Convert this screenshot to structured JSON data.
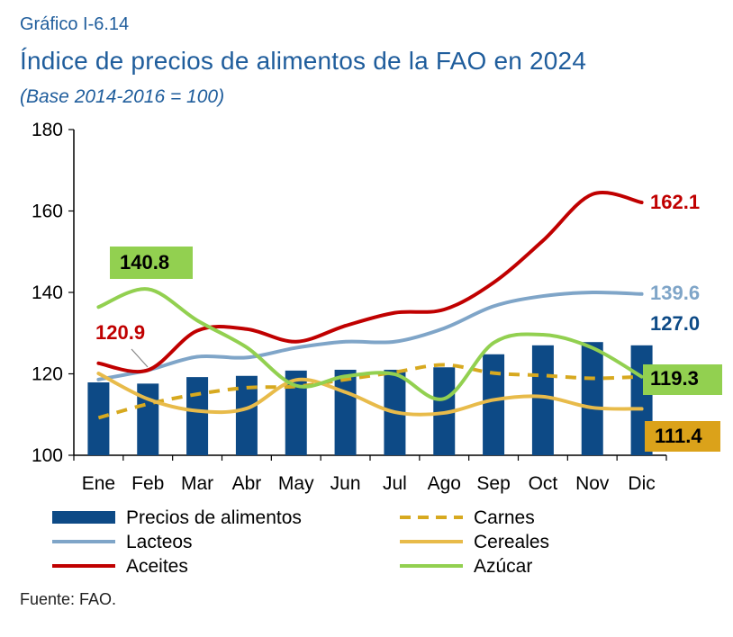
{
  "header": {
    "kicker": "Gráfico I-6.14",
    "title": "Índice de precios de alimentos de la FAO en 2024",
    "subtitle": "(Base 2014-2016 = 100)"
  },
  "footer": {
    "source": "Fuente: FAO."
  },
  "chart_data": {
    "type": "bar",
    "categories": [
      "Ene",
      "Feb",
      "Mar",
      "Abr",
      "May",
      "Jun",
      "Jul",
      "Ago",
      "Sep",
      "Oct",
      "Nov",
      "Dic"
    ],
    "ylim": [
      100,
      180
    ],
    "yticks": [
      100,
      120,
      140,
      160,
      180
    ],
    "grid": false,
    "legend_position": "bottom",
    "series": [
      {
        "name": "Precios de alimentos",
        "kind": "bar",
        "color": "#0d4a86",
        "values": [
          117.9,
          117.6,
          119.2,
          119.5,
          120.8,
          121.0,
          121.0,
          121.6,
          124.8,
          127.0,
          127.8,
          127.0
        ]
      },
      {
        "name": "Carnes",
        "kind": "line-dashed",
        "color": "#d7a91f",
        "values": [
          109.2,
          112.6,
          115.0,
          116.6,
          116.9,
          118.6,
          120.4,
          122.2,
          120.2,
          119.6,
          118.9,
          119.3
        ]
      },
      {
        "name": "Lacteos",
        "kind": "line",
        "color": "#7fa5c8",
        "values": [
          118.6,
          120.9,
          124.2,
          124.0,
          126.4,
          127.9,
          127.9,
          131.2,
          136.6,
          139.1,
          140.0,
          139.6
        ]
      },
      {
        "name": "Cereales",
        "kind": "line",
        "color": "#e8bb4a",
        "values": [
          120.1,
          113.8,
          110.9,
          111.5,
          118.5,
          115.5,
          110.6,
          110.4,
          113.6,
          114.4,
          111.7,
          111.4
        ]
      },
      {
        "name": "Aceites",
        "kind": "line",
        "color": "#c00000",
        "values": [
          122.6,
          120.9,
          130.6,
          131.0,
          127.9,
          131.8,
          135.0,
          135.8,
          142.4,
          152.7,
          164.1,
          162.1
        ]
      },
      {
        "name": "Azúcar",
        "kind": "line",
        "color": "#92d050",
        "values": [
          136.4,
          140.8,
          133.1,
          126.5,
          117.1,
          119.4,
          119.9,
          113.9,
          127.6,
          129.6,
          126.4,
          119.3
        ]
      }
    ],
    "annotations": [
      {
        "text": "162.1",
        "series": "Aceites",
        "color": "#c00000"
      },
      {
        "text": "139.6",
        "series": "Lacteos",
        "color": "#7fa5c8"
      },
      {
        "text": "127.0",
        "series": "Precios de alimentos",
        "color": "#0d4a86"
      },
      {
        "text": "119.3",
        "series": "Azúcar",
        "color": "#000000",
        "box": "#92d050"
      },
      {
        "text": "111.4",
        "series": "Cereales",
        "color": "#000000",
        "box": "#dba21a"
      },
      {
        "text": "140.8",
        "series": "Azúcar",
        "color": "#000000",
        "box": "#92d050"
      },
      {
        "text": "120.9",
        "series": "Aceites",
        "color": "#c00000"
      }
    ]
  }
}
